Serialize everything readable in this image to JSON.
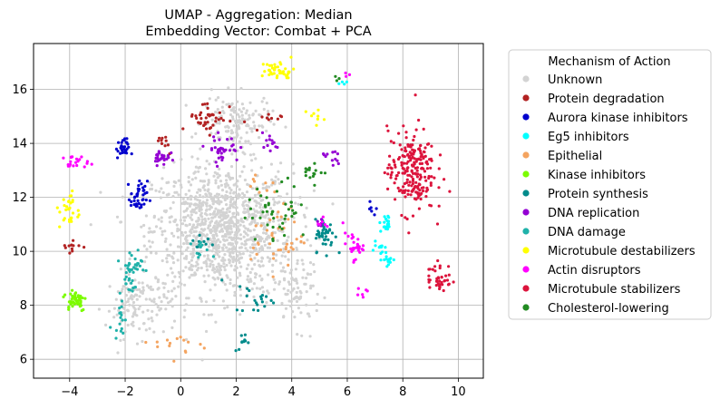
{
  "chart_data": {
    "type": "scatter",
    "title": "UMAP - Aggregation: Median",
    "subtitle": "Embedding Vector: Combat + PCA",
    "xlabel": "",
    "ylabel": "",
    "xlim": [
      -5.3,
      10.9
    ],
    "ylim": [
      5.3,
      17.7
    ],
    "xticks": [
      "−4",
      "−2",
      "0",
      "2",
      "4",
      "6",
      "8",
      "10"
    ],
    "yticks": [
      "6",
      "8",
      "10",
      "12",
      "14",
      "16"
    ],
    "grid": true,
    "legend": {
      "title": "Mechanism of Action",
      "placement": "outside-right"
    },
    "series": [
      {
        "name": "Unknown",
        "color": "#d3d3d3",
        "clusters": [
          {
            "cx": 1.5,
            "cy": 10.8,
            "sx": 2.1,
            "sy": 2.0,
            "n": 1100
          },
          {
            "cx": -1.5,
            "cy": 8.0,
            "sx": 1.0,
            "sy": 1.0,
            "n": 120
          },
          {
            "cx": 4.2,
            "cy": 8.5,
            "sx": 0.7,
            "sy": 1.1,
            "n": 80
          },
          {
            "cx": 2.0,
            "cy": 14.8,
            "sx": 1.0,
            "sy": 0.8,
            "n": 140
          }
        ]
      },
      {
        "name": "Protein degradation",
        "color": "#b22222",
        "clusters": [
          {
            "cx": 1.0,
            "cy": 15.0,
            "sx": 0.6,
            "sy": 0.5,
            "n": 40
          },
          {
            "cx": -0.7,
            "cy": 14.0,
            "sx": 0.3,
            "sy": 0.3,
            "n": 10
          },
          {
            "cx": 3.0,
            "cy": 14.8,
            "sx": 0.5,
            "sy": 0.3,
            "n": 10
          },
          {
            "cx": -4.0,
            "cy": 10.2,
            "sx": 0.3,
            "sy": 0.3,
            "n": 12
          }
        ]
      },
      {
        "name": "Aurora kinase inhibitors",
        "color": "#0000cd",
        "clusters": [
          {
            "cx": -2.1,
            "cy": 13.8,
            "sx": 0.2,
            "sy": 0.3,
            "n": 30
          },
          {
            "cx": -1.5,
            "cy": 12.0,
            "sx": 0.25,
            "sy": 0.5,
            "n": 40
          },
          {
            "cx": 6.8,
            "cy": 11.6,
            "sx": 0.2,
            "sy": 0.3,
            "n": 6
          }
        ]
      },
      {
        "name": "Eg5 inhibitors",
        "color": "#00ffff",
        "clusters": [
          {
            "cx": 7.4,
            "cy": 11.0,
            "sx": 0.2,
            "sy": 0.3,
            "n": 20
          },
          {
            "cx": 7.5,
            "cy": 9.7,
            "sx": 0.2,
            "sy": 0.2,
            "n": 15
          },
          {
            "cx": 7.1,
            "cy": 10.2,
            "sx": 0.2,
            "sy": 0.2,
            "n": 10
          },
          {
            "cx": 5.9,
            "cy": 16.3,
            "sx": 0.1,
            "sy": 0.1,
            "n": 4
          }
        ]
      },
      {
        "name": "Epithelial",
        "color": "#f4a460",
        "clusters": [
          {
            "cx": 3.5,
            "cy": 10.5,
            "sx": 0.8,
            "sy": 1.0,
            "n": 40
          },
          {
            "cx": 0.0,
            "cy": 6.5,
            "sx": 0.8,
            "sy": 0.4,
            "n": 15
          },
          {
            "cx": 3.0,
            "cy": 12.5,
            "sx": 0.5,
            "sy": 0.5,
            "n": 10
          }
        ]
      },
      {
        "name": "Kinase inhibitors",
        "color": "#7cfc00",
        "clusters": [
          {
            "cx": -3.8,
            "cy": 8.2,
            "sx": 0.35,
            "sy": 0.35,
            "n": 50
          }
        ]
      },
      {
        "name": "Protein synthesis",
        "color": "#008b8b",
        "clusters": [
          {
            "cx": 5.2,
            "cy": 10.6,
            "sx": 0.3,
            "sy": 0.5,
            "n": 45
          },
          {
            "cx": 2.7,
            "cy": 8.3,
            "sx": 0.6,
            "sy": 0.5,
            "n": 20
          },
          {
            "cx": 2.3,
            "cy": 6.6,
            "sx": 0.3,
            "sy": 0.3,
            "n": 10
          },
          {
            "cx": 0.8,
            "cy": 10.3,
            "sx": 0.4,
            "sy": 0.4,
            "n": 10
          }
        ]
      },
      {
        "name": "DNA replication",
        "color": "#9400d3",
        "clusters": [
          {
            "cx": -0.7,
            "cy": 13.5,
            "sx": 0.25,
            "sy": 0.25,
            "n": 25
          },
          {
            "cx": 1.5,
            "cy": 13.8,
            "sx": 0.5,
            "sy": 0.4,
            "n": 35
          },
          {
            "cx": 3.2,
            "cy": 14.0,
            "sx": 0.3,
            "sy": 0.3,
            "n": 12
          },
          {
            "cx": 5.4,
            "cy": 13.5,
            "sx": 0.3,
            "sy": 0.4,
            "n": 12
          },
          {
            "cx": 5.0,
            "cy": 11.0,
            "sx": 0.2,
            "sy": 0.2,
            "n": 6
          }
        ]
      },
      {
        "name": "DNA damage",
        "color": "#20b2aa",
        "clusters": [
          {
            "cx": -1.8,
            "cy": 9.3,
            "sx": 0.35,
            "sy": 0.8,
            "n": 45
          },
          {
            "cx": -2.2,
            "cy": 7.5,
            "sx": 0.2,
            "sy": 0.4,
            "n": 15
          },
          {
            "cx": 0.8,
            "cy": 10.0,
            "sx": 0.3,
            "sy": 0.3,
            "n": 10
          }
        ]
      },
      {
        "name": "Microtubule destabilizers",
        "color": "#ffff00",
        "clusters": [
          {
            "cx": 3.5,
            "cy": 16.7,
            "sx": 0.5,
            "sy": 0.3,
            "n": 40
          },
          {
            "cx": -4.0,
            "cy": 11.5,
            "sx": 0.3,
            "sy": 0.6,
            "n": 30
          },
          {
            "cx": 4.8,
            "cy": 15.0,
            "sx": 0.3,
            "sy": 0.3,
            "n": 8
          }
        ]
      },
      {
        "name": "Actin disruptors",
        "color": "#ff00ff",
        "clusters": [
          {
            "cx": -3.8,
            "cy": 13.3,
            "sx": 0.4,
            "sy": 0.2,
            "n": 20
          },
          {
            "cx": 6.2,
            "cy": 10.2,
            "sx": 0.3,
            "sy": 0.4,
            "n": 30
          },
          {
            "cx": 5.2,
            "cy": 11.0,
            "sx": 0.2,
            "sy": 0.2,
            "n": 6
          },
          {
            "cx": 6.6,
            "cy": 8.5,
            "sx": 0.2,
            "sy": 0.2,
            "n": 6
          },
          {
            "cx": 6.0,
            "cy": 16.5,
            "sx": 0.1,
            "sy": 0.1,
            "n": 3
          }
        ]
      },
      {
        "name": "Microtubule stabilizers",
        "color": "#dc143c",
        "clusters": [
          {
            "cx": 8.3,
            "cy": 13.0,
            "sx": 0.7,
            "sy": 1.3,
            "n": 220
          },
          {
            "cx": 9.3,
            "cy": 9.0,
            "sx": 0.4,
            "sy": 0.5,
            "n": 40
          }
        ]
      },
      {
        "name": "Cholesterol-lowering",
        "color": "#228b22",
        "clusters": [
          {
            "cx": 3.5,
            "cy": 11.5,
            "sx": 0.9,
            "sy": 0.9,
            "n": 45
          },
          {
            "cx": 4.8,
            "cy": 13.0,
            "sx": 0.4,
            "sy": 0.3,
            "n": 15
          },
          {
            "cx": 5.6,
            "cy": 16.4,
            "sx": 0.1,
            "sy": 0.1,
            "n": 3
          }
        ]
      }
    ]
  }
}
